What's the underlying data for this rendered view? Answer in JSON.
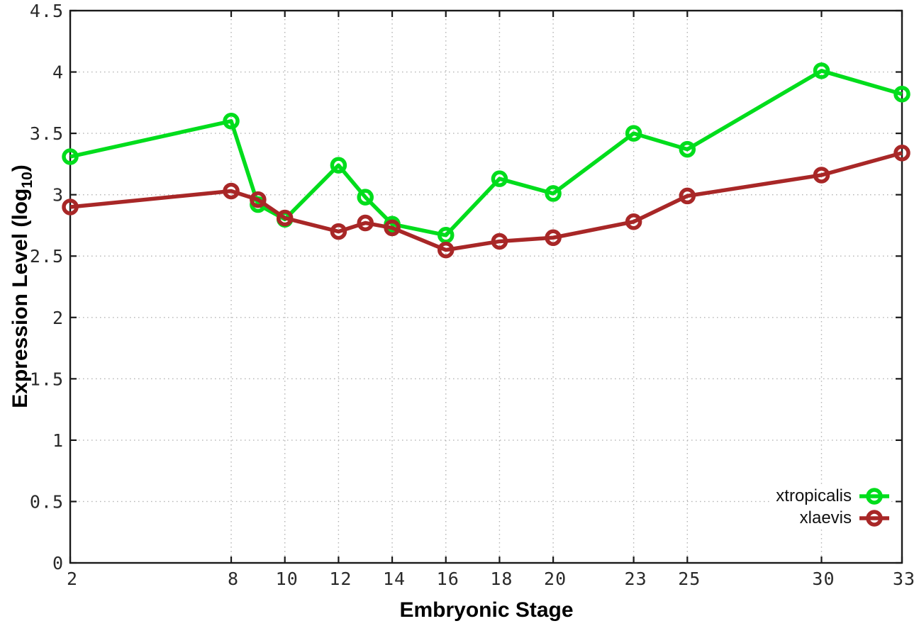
{
  "labels": {
    "xlabel": "Embryonic Stage",
    "ylabel_main": "Expression Level (log",
    "ylabel_sub": "10",
    "ylabel_close": ")"
  },
  "chart_data": {
    "type": "line",
    "title": "",
    "xlabel": "Embryonic Stage",
    "ylabel": "Expression Level (log10)",
    "xlim": [
      2,
      33
    ],
    "ylim": [
      0,
      4.5
    ],
    "x_ticks": [
      2,
      8,
      10,
      12,
      14,
      16,
      18,
      20,
      23,
      25,
      30,
      33
    ],
    "y_ticks": [
      0,
      0.5,
      1,
      1.5,
      2,
      2.5,
      3,
      3.5,
      4,
      4.5
    ],
    "grid": true,
    "legend_position": "bottom-right",
    "border_color": "#1a1a1a",
    "grid_color": "#b3b3b3",
    "tick_label_color": "#2a2a2a",
    "marker_style": "open-circle",
    "series": [
      {
        "name": "xtropicalis",
        "color": "#00dd1c",
        "x": [
          2,
          8,
          9,
          10,
          12,
          13,
          14,
          16,
          18,
          20,
          23,
          25,
          30,
          33
        ],
        "y": [
          3.31,
          3.6,
          2.92,
          2.8,
          3.24,
          2.98,
          2.76,
          2.67,
          3.13,
          3.01,
          3.5,
          3.37,
          4.01,
          3.82
        ]
      },
      {
        "name": "xlaevis",
        "color": "#a82727",
        "x": [
          2,
          8,
          9,
          10,
          12,
          13,
          14,
          16,
          18,
          20,
          23,
          25,
          30,
          33
        ],
        "y": [
          2.9,
          3.03,
          2.96,
          2.81,
          2.7,
          2.77,
          2.73,
          2.55,
          2.62,
          2.65,
          2.78,
          2.99,
          3.16,
          3.34
        ]
      }
    ]
  }
}
